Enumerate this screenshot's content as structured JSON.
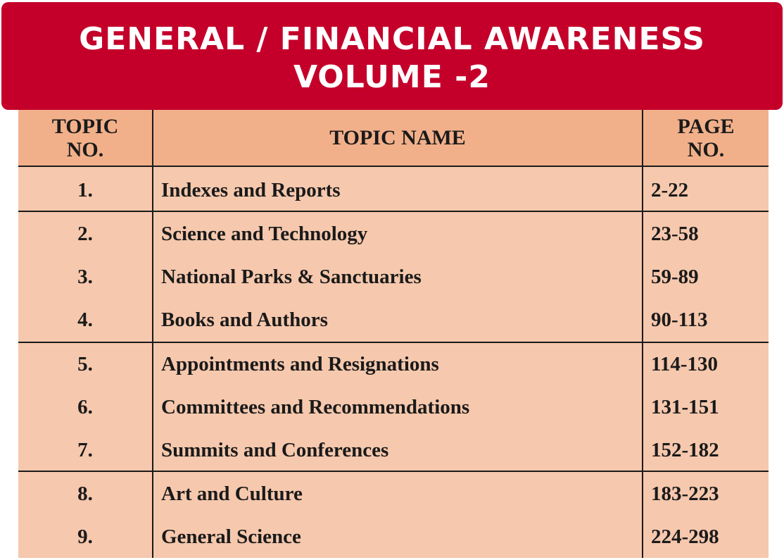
{
  "header": {
    "title_line1": "GENERAL / FINANCIAL AWARENESS",
    "title_line2": "VOLUME -2"
  },
  "table": {
    "columns": [
      "TOPIC\nNO.",
      "TOPIC NAME",
      "PAGE\nNO."
    ],
    "rows": [
      {
        "no": "1.",
        "name": "Indexes and Reports",
        "page": "2-22"
      },
      {
        "no": "2.",
        "name": "Science and Technology",
        "page": "23-58"
      },
      {
        "no": "3.",
        "name": "National Parks & Sanctuaries",
        "page": "59-89"
      },
      {
        "no": "4.",
        "name": "Books and Authors",
        "page": "90-113"
      },
      {
        "no": "5.",
        "name": "Appointments and Resignations",
        "page": "114-130"
      },
      {
        "no": "6.",
        "name": "Committees and Recommendations",
        "page": "131-151"
      },
      {
        "no": "7.",
        "name": "Summits and Conferences",
        "page": "152-182"
      },
      {
        "no": "8.",
        "name": "Art and Culture",
        "page": "183-223"
      },
      {
        "no": "9.",
        "name": "General Science",
        "page": "224-298"
      }
    ]
  },
  "colors": {
    "banner": "#c4002a",
    "header_row": "#f2b08a",
    "body_rows": "#f6c8ad"
  }
}
